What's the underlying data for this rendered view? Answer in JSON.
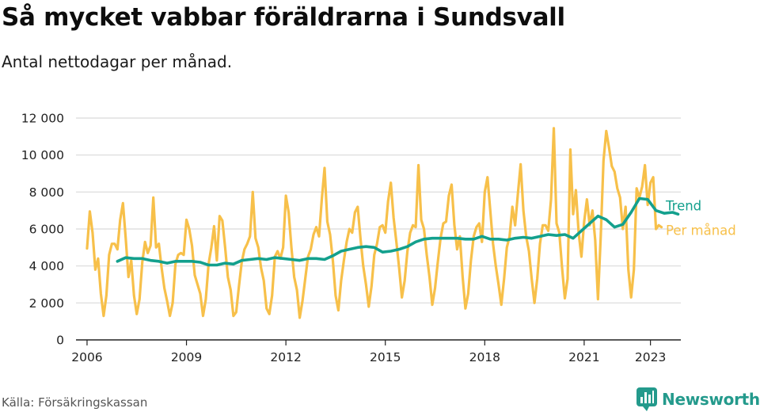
{
  "title": "Så mycket vabbar föräldrarna i Sundsvall",
  "subtitle": "Antal nettodagar per månad.",
  "source": "Källa: Försäkringskassan",
  "brand": "Newsworthy",
  "colors": {
    "monthly": "#f7c04a",
    "trend": "#13a08d",
    "grid": "#d9d9d9",
    "axis": "#222222",
    "brand": "#249a8c"
  },
  "chart_data": {
    "type": "line",
    "title": "Så mycket vabbar föräldrarna i Sundsvall",
    "subtitle": "Antal nettodagar per månad.",
    "xlabel": "",
    "ylabel": "",
    "ylim": [
      0,
      12000
    ],
    "xlim": [
      "2005-09",
      "2023-12"
    ],
    "x_ticks": [
      "2006",
      "2009",
      "2012",
      "2015",
      "2018",
      "2021",
      "2023"
    ],
    "y_ticks": [
      {
        "value": 0,
        "label": "0"
      },
      {
        "value": 2000,
        "label": "2 000"
      },
      {
        "value": 4000,
        "label": "4 000"
      },
      {
        "value": 6000,
        "label": "6 000"
      },
      {
        "value": 8000,
        "label": "8 000"
      },
      {
        "value": 10000,
        "label": "10 000"
      },
      {
        "value": 12000,
        "label": "12 000"
      }
    ],
    "grid": true,
    "legend": "direct labels at right end of lines",
    "series": [
      {
        "name": "Trend",
        "color": "#13a08d",
        "points": [
          [
            "2006-12",
            4250
          ],
          [
            "2007-03",
            4450
          ],
          [
            "2007-06",
            4400
          ],
          [
            "2007-09",
            4400
          ],
          [
            "2007-12",
            4300
          ],
          [
            "2008-03",
            4250
          ],
          [
            "2008-06",
            4150
          ],
          [
            "2008-09",
            4250
          ],
          [
            "2008-12",
            4250
          ],
          [
            "2009-03",
            4250
          ],
          [
            "2009-06",
            4200
          ],
          [
            "2009-09",
            4050
          ],
          [
            "2009-12",
            4050
          ],
          [
            "2010-03",
            4150
          ],
          [
            "2010-06",
            4100
          ],
          [
            "2010-09",
            4300
          ],
          [
            "2010-12",
            4350
          ],
          [
            "2011-03",
            4400
          ],
          [
            "2011-06",
            4350
          ],
          [
            "2011-09",
            4450
          ],
          [
            "2011-12",
            4400
          ],
          [
            "2012-03",
            4350
          ],
          [
            "2012-06",
            4300
          ],
          [
            "2012-09",
            4400
          ],
          [
            "2012-12",
            4400
          ],
          [
            "2013-03",
            4350
          ],
          [
            "2013-06",
            4550
          ],
          [
            "2013-09",
            4800
          ],
          [
            "2013-12",
            4900
          ],
          [
            "2014-03",
            5000
          ],
          [
            "2014-06",
            5050
          ],
          [
            "2014-09",
            5000
          ],
          [
            "2014-12",
            4750
          ],
          [
            "2015-03",
            4800
          ],
          [
            "2015-06",
            4900
          ],
          [
            "2015-09",
            5050
          ],
          [
            "2015-12",
            5300
          ],
          [
            "2016-03",
            5450
          ],
          [
            "2016-06",
            5500
          ],
          [
            "2016-09",
            5500
          ],
          [
            "2016-12",
            5500
          ],
          [
            "2017-03",
            5500
          ],
          [
            "2017-06",
            5450
          ],
          [
            "2017-09",
            5450
          ],
          [
            "2017-12",
            5600
          ],
          [
            "2018-03",
            5450
          ],
          [
            "2018-06",
            5450
          ],
          [
            "2018-09",
            5400
          ],
          [
            "2018-12",
            5500
          ],
          [
            "2019-03",
            5550
          ],
          [
            "2019-06",
            5500
          ],
          [
            "2019-09",
            5600
          ],
          [
            "2019-12",
            5700
          ],
          [
            "2020-03",
            5650
          ],
          [
            "2020-06",
            5700
          ],
          [
            "2020-09",
            5500
          ],
          [
            "2020-12",
            5900
          ],
          [
            "2021-03",
            6300
          ],
          [
            "2021-06",
            6700
          ],
          [
            "2021-09",
            6500
          ],
          [
            "2021-12",
            6100
          ],
          [
            "2022-03",
            6250
          ],
          [
            "2022-06",
            6900
          ],
          [
            "2022-09",
            7650
          ],
          [
            "2022-12",
            7600
          ],
          [
            "2023-03",
            7000
          ],
          [
            "2023-06",
            6850
          ],
          [
            "2023-09",
            6900
          ],
          [
            "2023-11",
            6800
          ]
        ]
      },
      {
        "name": "Per månad",
        "color": "#f7c04a",
        "points": [
          [
            "2006-01",
            4950
          ],
          [
            "2006-02",
            6950
          ],
          [
            "2006-03",
            5800
          ],
          [
            "2006-04",
            3800
          ],
          [
            "2006-05",
            4400
          ],
          [
            "2006-06",
            2500
          ],
          [
            "2006-07",
            1300
          ],
          [
            "2006-08",
            2400
          ],
          [
            "2006-09",
            4600
          ],
          [
            "2006-10",
            5200
          ],
          [
            "2006-11",
            5200
          ],
          [
            "2006-12",
            4900
          ],
          [
            "2007-01",
            6500
          ],
          [
            "2007-02",
            7400
          ],
          [
            "2007-03",
            5500
          ],
          [
            "2007-04",
            3400
          ],
          [
            "2007-05",
            4300
          ],
          [
            "2007-06",
            2400
          ],
          [
            "2007-07",
            1400
          ],
          [
            "2007-08",
            2200
          ],
          [
            "2007-09",
            4200
          ],
          [
            "2007-10",
            5300
          ],
          [
            "2007-11",
            4700
          ],
          [
            "2007-12",
            5100
          ],
          [
            "2008-01",
            7700
          ],
          [
            "2008-02",
            5000
          ],
          [
            "2008-03",
            5200
          ],
          [
            "2008-04",
            3900
          ],
          [
            "2008-05",
            2800
          ],
          [
            "2008-06",
            2100
          ],
          [
            "2008-07",
            1300
          ],
          [
            "2008-08",
            2000
          ],
          [
            "2008-09",
            4100
          ],
          [
            "2008-10",
            4600
          ],
          [
            "2008-11",
            4700
          ],
          [
            "2008-12",
            4600
          ],
          [
            "2009-01",
            6500
          ],
          [
            "2009-02",
            6000
          ],
          [
            "2009-03",
            5100
          ],
          [
            "2009-04",
            3500
          ],
          [
            "2009-05",
            3000
          ],
          [
            "2009-06",
            2500
          ],
          [
            "2009-07",
            1300
          ],
          [
            "2009-08",
            2200
          ],
          [
            "2009-09",
            4100
          ],
          [
            "2009-10",
            5000
          ],
          [
            "2009-11",
            6150
          ],
          [
            "2009-12",
            4300
          ],
          [
            "2010-01",
            6700
          ],
          [
            "2010-02",
            6450
          ],
          [
            "2010-03",
            5000
          ],
          [
            "2010-04",
            3400
          ],
          [
            "2010-05",
            2700
          ],
          [
            "2010-06",
            1300
          ],
          [
            "2010-07",
            1500
          ],
          [
            "2010-08",
            2900
          ],
          [
            "2010-09",
            4200
          ],
          [
            "2010-10",
            4900
          ],
          [
            "2010-11",
            5200
          ],
          [
            "2010-12",
            5600
          ],
          [
            "2011-01",
            8000
          ],
          [
            "2011-02",
            5500
          ],
          [
            "2011-03",
            5000
          ],
          [
            "2011-04",
            3900
          ],
          [
            "2011-05",
            3200
          ],
          [
            "2011-06",
            1700
          ],
          [
            "2011-07",
            1400
          ],
          [
            "2011-08",
            2400
          ],
          [
            "2011-09",
            4500
          ],
          [
            "2011-10",
            4800
          ],
          [
            "2011-11",
            4400
          ],
          [
            "2011-12",
            5000
          ],
          [
            "2012-01",
            7800
          ],
          [
            "2012-02",
            6900
          ],
          [
            "2012-03",
            5000
          ],
          [
            "2012-04",
            3400
          ],
          [
            "2012-05",
            2700
          ],
          [
            "2012-06",
            1200
          ],
          [
            "2012-07",
            2100
          ],
          [
            "2012-08",
            3300
          ],
          [
            "2012-09",
            4500
          ],
          [
            "2012-10",
            4900
          ],
          [
            "2012-11",
            5700
          ],
          [
            "2012-12",
            6100
          ],
          [
            "2013-01",
            5600
          ],
          [
            "2013-02",
            7600
          ],
          [
            "2013-03",
            9300
          ],
          [
            "2013-04",
            6400
          ],
          [
            "2013-05",
            5700
          ],
          [
            "2013-06",
            4300
          ],
          [
            "2013-07",
            2400
          ],
          [
            "2013-08",
            1600
          ],
          [
            "2013-09",
            3200
          ],
          [
            "2013-10",
            4300
          ],
          [
            "2013-11",
            5300
          ],
          [
            "2013-12",
            6000
          ],
          [
            "2014-01",
            5800
          ],
          [
            "2014-02",
            6900
          ],
          [
            "2014-03",
            7200
          ],
          [
            "2014-04",
            5500
          ],
          [
            "2014-05",
            4000
          ],
          [
            "2014-06",
            3000
          ],
          [
            "2014-07",
            1800
          ],
          [
            "2014-08",
            2900
          ],
          [
            "2014-09",
            4600
          ],
          [
            "2014-10",
            5200
          ],
          [
            "2014-11",
            6100
          ],
          [
            "2014-12",
            6200
          ],
          [
            "2015-01",
            5800
          ],
          [
            "2015-02",
            7500
          ],
          [
            "2015-03",
            8500
          ],
          [
            "2015-04",
            6600
          ],
          [
            "2015-05",
            5300
          ],
          [
            "2015-06",
            3900
          ],
          [
            "2015-07",
            2300
          ],
          [
            "2015-08",
            3200
          ],
          [
            "2015-09",
            4800
          ],
          [
            "2015-10",
            5800
          ],
          [
            "2015-11",
            6200
          ],
          [
            "2015-12",
            6100
          ],
          [
            "2016-01",
            9450
          ],
          [
            "2016-02",
            6500
          ],
          [
            "2016-03",
            6000
          ],
          [
            "2016-04",
            4600
          ],
          [
            "2016-05",
            3400
          ],
          [
            "2016-06",
            1900
          ],
          [
            "2016-07",
            2800
          ],
          [
            "2016-08",
            4200
          ],
          [
            "2016-09",
            5500
          ],
          [
            "2016-10",
            6300
          ],
          [
            "2016-11",
            6400
          ],
          [
            "2016-12",
            7800
          ],
          [
            "2017-01",
            8400
          ],
          [
            "2017-02",
            6200
          ],
          [
            "2017-03",
            4900
          ],
          [
            "2017-04",
            5600
          ],
          [
            "2017-05",
            3400
          ],
          [
            "2017-06",
            1700
          ],
          [
            "2017-07",
            2500
          ],
          [
            "2017-08",
            4300
          ],
          [
            "2017-09",
            5600
          ],
          [
            "2017-10",
            6100
          ],
          [
            "2017-11",
            6300
          ],
          [
            "2017-12",
            5300
          ],
          [
            "2018-01",
            8000
          ],
          [
            "2018-02",
            8800
          ],
          [
            "2018-03",
            7000
          ],
          [
            "2018-04",
            5200
          ],
          [
            "2018-05",
            4000
          ],
          [
            "2018-06",
            3000
          ],
          [
            "2018-07",
            1900
          ],
          [
            "2018-08",
            3300
          ],
          [
            "2018-09",
            5000
          ],
          [
            "2018-10",
            5600
          ],
          [
            "2018-11",
            7200
          ],
          [
            "2018-12",
            6200
          ],
          [
            "2019-01",
            7900
          ],
          [
            "2019-02",
            9500
          ],
          [
            "2019-03",
            7000
          ],
          [
            "2019-04",
            5600
          ],
          [
            "2019-05",
            4800
          ],
          [
            "2019-06",
            3300
          ],
          [
            "2019-07",
            2000
          ],
          [
            "2019-08",
            3300
          ],
          [
            "2019-09",
            5200
          ],
          [
            "2019-10",
            6200
          ],
          [
            "2019-11",
            6200
          ],
          [
            "2019-12",
            5900
          ],
          [
            "2020-01",
            7600
          ],
          [
            "2020-02",
            11450
          ],
          [
            "2020-03",
            6300
          ],
          [
            "2020-04",
            5800
          ],
          [
            "2020-05",
            3900
          ],
          [
            "2020-06",
            2250
          ],
          [
            "2020-07",
            3300
          ],
          [
            "2020-08",
            10300
          ],
          [
            "2020-09",
            6800
          ],
          [
            "2020-10",
            8100
          ],
          [
            "2020-11",
            5800
          ],
          [
            "2020-12",
            4500
          ],
          [
            "2021-01",
            6400
          ],
          [
            "2021-02",
            7600
          ],
          [
            "2021-03",
            6200
          ],
          [
            "2021-04",
            7000
          ],
          [
            "2021-05",
            5400
          ],
          [
            "2021-06",
            2200
          ],
          [
            "2021-07",
            5600
          ],
          [
            "2021-08",
            9700
          ],
          [
            "2021-09",
            11300
          ],
          [
            "2021-10",
            10400
          ],
          [
            "2021-11",
            9400
          ],
          [
            "2021-12",
            9100
          ],
          [
            "2022-01",
            8200
          ],
          [
            "2022-02",
            7700
          ],
          [
            "2022-03",
            6000
          ],
          [
            "2022-04",
            7200
          ],
          [
            "2022-05",
            3800
          ],
          [
            "2022-06",
            2300
          ],
          [
            "2022-07",
            3800
          ],
          [
            "2022-08",
            8200
          ],
          [
            "2022-09",
            7700
          ],
          [
            "2022-10",
            8300
          ],
          [
            "2022-11",
            9450
          ],
          [
            "2022-12",
            7300
          ],
          [
            "2023-01",
            8500
          ],
          [
            "2023-02",
            8800
          ],
          [
            "2023-03",
            6000
          ],
          [
            "2023-04",
            6200
          ],
          [
            "2023-05",
            6100
          ]
        ]
      }
    ]
  }
}
